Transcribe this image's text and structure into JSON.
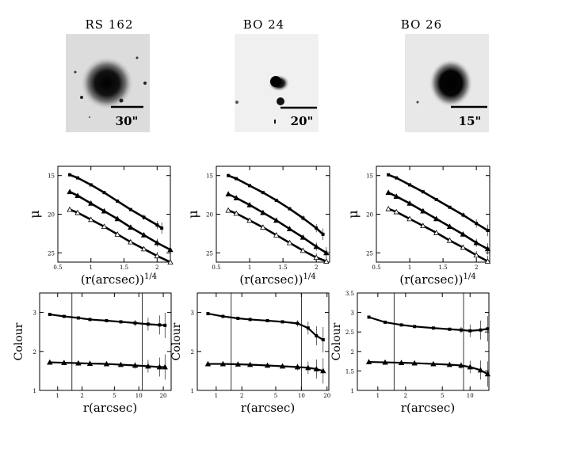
{
  "chart_data": [
    {
      "type": "scatter",
      "galaxy": "RS 162",
      "scale_bar": "30\"",
      "xlabel": "(r(arcsec))1/4",
      "ylabel": "μ",
      "xlim": [
        0.5,
        2.2
      ],
      "ylim": [
        26.2,
        13.8
      ],
      "xticks": [
        {
          "v": 0.5,
          "t": "0.5"
        },
        {
          "v": 1,
          "t": "1"
        },
        {
          "v": 1.5,
          "t": "1.5"
        },
        {
          "v": 2,
          "t": "2"
        }
      ],
      "yticks": [
        {
          "v": 15,
          "t": "15"
        },
        {
          "v": 20,
          "t": "20"
        },
        {
          "v": 25,
          "t": "25"
        }
      ],
      "series": [
        {
          "marker": "square",
          "x": [
            0.68,
            0.8,
            1.0,
            1.2,
            1.4,
            1.6,
            1.8,
            2.0,
            2.07
          ],
          "y": [
            14.9,
            15.3,
            16.2,
            17.2,
            18.3,
            19.4,
            20.4,
            21.4,
            21.8
          ]
        },
        {
          "marker": "triangle",
          "x": [
            0.68,
            0.8,
            1.0,
            1.2,
            1.4,
            1.6,
            1.8,
            2.0,
            2.2
          ],
          "y": [
            17.1,
            17.6,
            18.6,
            19.6,
            20.6,
            21.7,
            22.7,
            23.7,
            24.6
          ]
        },
        {
          "marker": "open-triangle",
          "x": [
            0.68,
            0.8,
            1.0,
            1.2,
            1.4,
            1.6,
            1.8,
            2.0,
            2.2
          ],
          "y": [
            19.4,
            19.8,
            20.7,
            21.6,
            22.6,
            23.6,
            24.5,
            25.4,
            26.2
          ]
        }
      ]
    },
    {
      "type": "scatter",
      "galaxy": "BO 24",
      "scale_bar": "20\"",
      "xlabel": "(r(arcsec))1/4",
      "ylabel": "μ",
      "xlim": [
        0.5,
        2.2
      ],
      "ylim": [
        26.2,
        13.8
      ],
      "xticks": [
        {
          "v": 0.5,
          "t": "0.5"
        },
        {
          "v": 1,
          "t": "1"
        },
        {
          "v": 1.5,
          "t": "1.5"
        },
        {
          "v": 2,
          "t": "2"
        }
      ],
      "yticks": [
        {
          "v": 15,
          "t": "15"
        },
        {
          "v": 20,
          "t": "20"
        },
        {
          "v": 25,
          "t": "25"
        }
      ],
      "series": [
        {
          "marker": "square",
          "x": [
            0.68,
            0.8,
            1.0,
            1.2,
            1.4,
            1.6,
            1.8,
            2.0,
            2.1
          ],
          "y": [
            15.0,
            15.4,
            16.3,
            17.2,
            18.2,
            19.3,
            20.5,
            21.8,
            22.6
          ]
        },
        {
          "marker": "triangle",
          "x": [
            0.68,
            0.8,
            1.0,
            1.2,
            1.4,
            1.6,
            1.8,
            2.0,
            2.15
          ],
          "y": [
            17.4,
            17.9,
            18.8,
            19.8,
            20.8,
            21.9,
            23.0,
            24.2,
            25.0
          ]
        },
        {
          "marker": "open-triangle",
          "x": [
            0.68,
            0.8,
            1.0,
            1.2,
            1.4,
            1.6,
            1.8,
            2.0,
            2.15
          ],
          "y": [
            19.5,
            19.9,
            20.8,
            21.7,
            22.7,
            23.7,
            24.7,
            25.6,
            26.1
          ]
        }
      ]
    },
    {
      "type": "scatter",
      "galaxy": "BO 26",
      "scale_bar": "15\"",
      "xlabel": "(r(arcsec))1/4",
      "ylabel": "μ",
      "xlim": [
        0.5,
        2.2
      ],
      "ylim": [
        26.2,
        13.8
      ],
      "xticks": [
        {
          "v": 0.5,
          "t": "0.5"
        },
        {
          "v": 1,
          "t": "1"
        },
        {
          "v": 1.5,
          "t": "1.5"
        },
        {
          "v": 2,
          "t": "2"
        }
      ],
      "yticks": [
        {
          "v": 15,
          "t": "15"
        },
        {
          "v": 20,
          "t": "20"
        },
        {
          "v": 25,
          "t": "25"
        }
      ],
      "series": [
        {
          "marker": "square",
          "x": [
            0.68,
            0.8,
            1.0,
            1.2,
            1.4,
            1.6,
            1.8,
            2.0,
            2.17
          ],
          "y": [
            14.9,
            15.3,
            16.2,
            17.1,
            18.1,
            19.1,
            20.1,
            21.2,
            22.1
          ]
        },
        {
          "marker": "triangle",
          "x": [
            0.68,
            0.8,
            1.0,
            1.2,
            1.4,
            1.6,
            1.8,
            2.0,
            2.17
          ],
          "y": [
            17.2,
            17.7,
            18.6,
            19.6,
            20.6,
            21.6,
            22.6,
            23.7,
            24.5
          ]
        },
        {
          "marker": "open-triangle",
          "x": [
            0.68,
            0.8,
            1.0,
            1.2,
            1.4,
            1.6,
            1.8,
            2.0,
            2.17
          ],
          "y": [
            19.3,
            19.7,
            20.6,
            21.5,
            22.4,
            23.4,
            24.3,
            25.3,
            26.1
          ]
        }
      ]
    },
    {
      "type": "scatter",
      "galaxy": "RS 162",
      "xlabel": "r(arcsec)",
      "ylabel": "Colour",
      "xscale": "log",
      "xlim": [
        0.6,
        25
      ],
      "ylim": [
        1,
        3.5
      ],
      "xticks": [
        {
          "v": 1,
          "t": "1"
        },
        {
          "v": 2,
          "t": "2"
        },
        {
          "v": 5,
          "t": "5"
        },
        {
          "v": 10,
          "t": "10"
        },
        {
          "v": 20,
          "t": "20"
        }
      ],
      "yticks": [
        {
          "v": 1,
          "t": "1"
        },
        {
          "v": 2,
          "t": "2"
        },
        {
          "v": 3,
          "t": "3"
        }
      ],
      "vlines": [
        1.5,
        11
      ],
      "series": [
        {
          "marker": "square",
          "x": [
            0.8,
            1.2,
            1.8,
            2.5,
            4,
            6,
            9,
            13,
            18,
            21
          ],
          "y": [
            2.95,
            2.9,
            2.86,
            2.82,
            2.79,
            2.76,
            2.73,
            2.7,
            2.68,
            2.67
          ]
        },
        {
          "marker": "triangle",
          "x": [
            0.8,
            1.2,
            1.8,
            2.5,
            4,
            6,
            9,
            13,
            18,
            21
          ],
          "y": [
            1.72,
            1.71,
            1.7,
            1.69,
            1.68,
            1.66,
            1.64,
            1.62,
            1.6,
            1.6
          ]
        }
      ]
    },
    {
      "type": "scatter",
      "galaxy": "BO 24",
      "xlabel": "r(arcsec)",
      "ylabel": "Colour",
      "xscale": "log",
      "xlim": [
        0.6,
        21
      ],
      "ylim": [
        1,
        3.5
      ],
      "xticks": [
        {
          "v": 1,
          "t": "1"
        },
        {
          "v": 2,
          "t": "2"
        },
        {
          "v": 5,
          "t": "5"
        },
        {
          "v": 10,
          "t": "10"
        },
        {
          "v": 20,
          "t": "20"
        }
      ],
      "yticks": [
        {
          "v": 1,
          "t": "1"
        },
        {
          "v": 2,
          "t": "2"
        },
        {
          "v": 3,
          "t": "3"
        }
      ],
      "vlines": [
        1.5,
        10
      ],
      "series": [
        {
          "marker": "square",
          "x": [
            0.8,
            1.2,
            1.8,
            2.5,
            4,
            6,
            9,
            12,
            15,
            18
          ],
          "y": [
            2.97,
            2.9,
            2.85,
            2.82,
            2.79,
            2.76,
            2.72,
            2.6,
            2.4,
            2.3
          ]
        },
        {
          "marker": "triangle",
          "x": [
            0.8,
            1.2,
            1.8,
            2.5,
            4,
            6,
            9,
            12,
            15,
            18
          ],
          "y": [
            1.68,
            1.68,
            1.67,
            1.66,
            1.64,
            1.62,
            1.6,
            1.58,
            1.55,
            1.5
          ]
        }
      ]
    },
    {
      "type": "scatter",
      "galaxy": "BO 26",
      "xlabel": "r(arcsec)",
      "ylabel": "Colour",
      "xscale": "log",
      "xlim": [
        0.6,
        16
      ],
      "ylim": [
        1,
        3.5
      ],
      "xticks": [
        {
          "v": 1,
          "t": "1"
        },
        {
          "v": 2,
          "t": "2"
        },
        {
          "v": 5,
          "t": "5"
        },
        {
          "v": 10,
          "t": "10"
        }
      ],
      "yticks": [
        {
          "v": 1,
          "t": "1"
        },
        {
          "v": 1.5,
          "t": "1.5"
        },
        {
          "v": 2,
          "t": "2"
        },
        {
          "v": 2.5,
          "t": "2.5"
        },
        {
          "v": 3,
          "t": "3"
        },
        {
          "v": 3.5,
          "t": "3.5"
        }
      ],
      "vlines": [
        1.5,
        8.5
      ],
      "series": [
        {
          "marker": "square",
          "x": [
            0.8,
            1.2,
            1.8,
            2.5,
            4,
            6,
            8,
            10,
            13,
            15.5
          ],
          "y": [
            2.88,
            2.75,
            2.68,
            2.64,
            2.6,
            2.57,
            2.55,
            2.53,
            2.55,
            2.58
          ]
        },
        {
          "marker": "triangle",
          "x": [
            0.8,
            1.2,
            1.8,
            2.5,
            4,
            6,
            8,
            10,
            13,
            15.5
          ],
          "y": [
            1.73,
            1.72,
            1.71,
            1.7,
            1.68,
            1.66,
            1.64,
            1.6,
            1.52,
            1.42
          ]
        }
      ]
    }
  ]
}
